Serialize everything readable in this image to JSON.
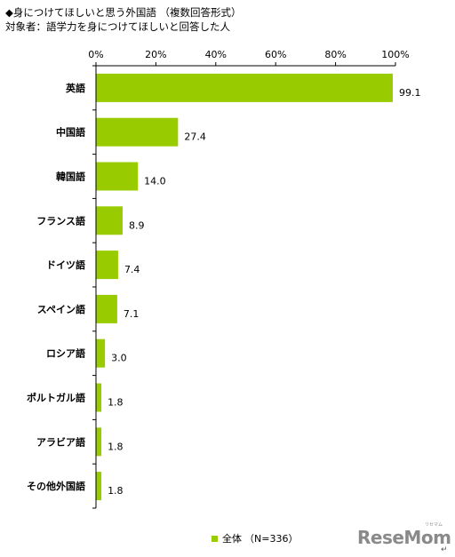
{
  "title": "◆身につけてほしいと思う外国語 （複数回答形式）",
  "subtitle": "対象者：語学力を身につけてほしいと回答した人",
  "colors": {
    "bar": "#99cc00",
    "axis": "#000000",
    "grid": "#000000"
  },
  "chart_data": {
    "type": "bar",
    "orientation": "horizontal",
    "categories": [
      "英語",
      "中国語",
      "韓国語",
      "フランス語",
      "ドイツ語",
      "スペイン語",
      "ロシア語",
      "ポルトガル語",
      "アラビア語",
      "その他外国語"
    ],
    "series": [
      {
        "name": "全体",
        "values": [
          99.1,
          27.4,
          14.0,
          8.9,
          7.4,
          7.1,
          3.0,
          1.8,
          1.8,
          1.8
        ]
      }
    ],
    "value_labels": [
      "99.1",
      "27.4",
      "14.0",
      "8.9",
      "7.4",
      "7.1",
      "3.0",
      "1.8",
      "1.8",
      "1.8"
    ],
    "xlim": [
      0,
      100
    ],
    "x_ticks": [
      0,
      20,
      40,
      60,
      80,
      100
    ],
    "x_tick_labels": [
      "0%",
      "20%",
      "40%",
      "60%",
      "80%",
      "100%"
    ],
    "tick_position": "top",
    "grid": false,
    "legend": {
      "position": "bottom",
      "label": "全体",
      "note": "（N=336）"
    }
  },
  "logo": {
    "text": "ReseMom",
    "kana": "リセマム"
  },
  "return_mark": "↵"
}
